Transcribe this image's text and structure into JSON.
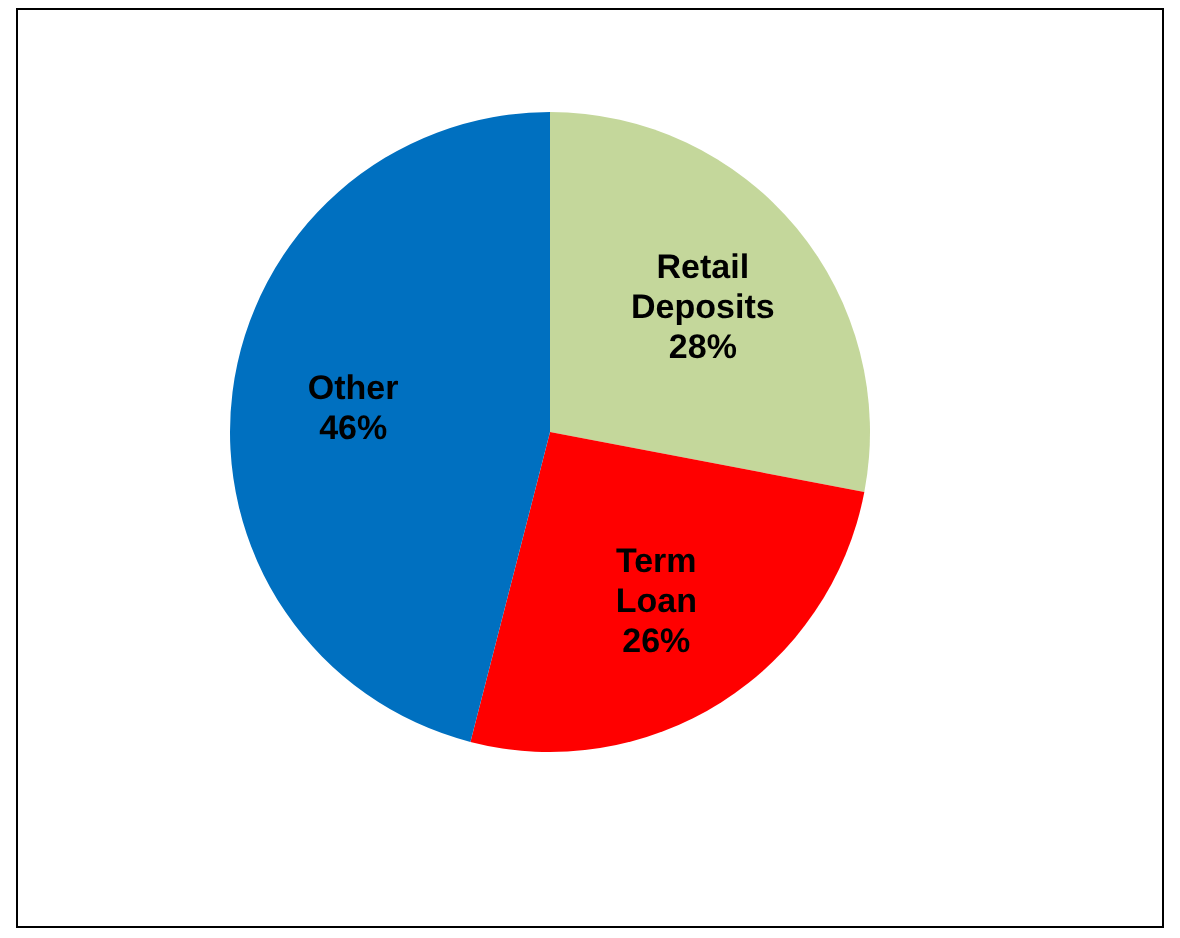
{
  "chart_data": {
    "type": "pie",
    "categories": [
      "Retail Deposits",
      "Term Loan",
      "Other"
    ],
    "values": [
      28,
      26,
      46
    ],
    "colors": [
      "#c4d79b",
      "#ff0000",
      "#0070c0"
    ],
    "value_labels": [
      "28%",
      "26%",
      "46%"
    ]
  }
}
